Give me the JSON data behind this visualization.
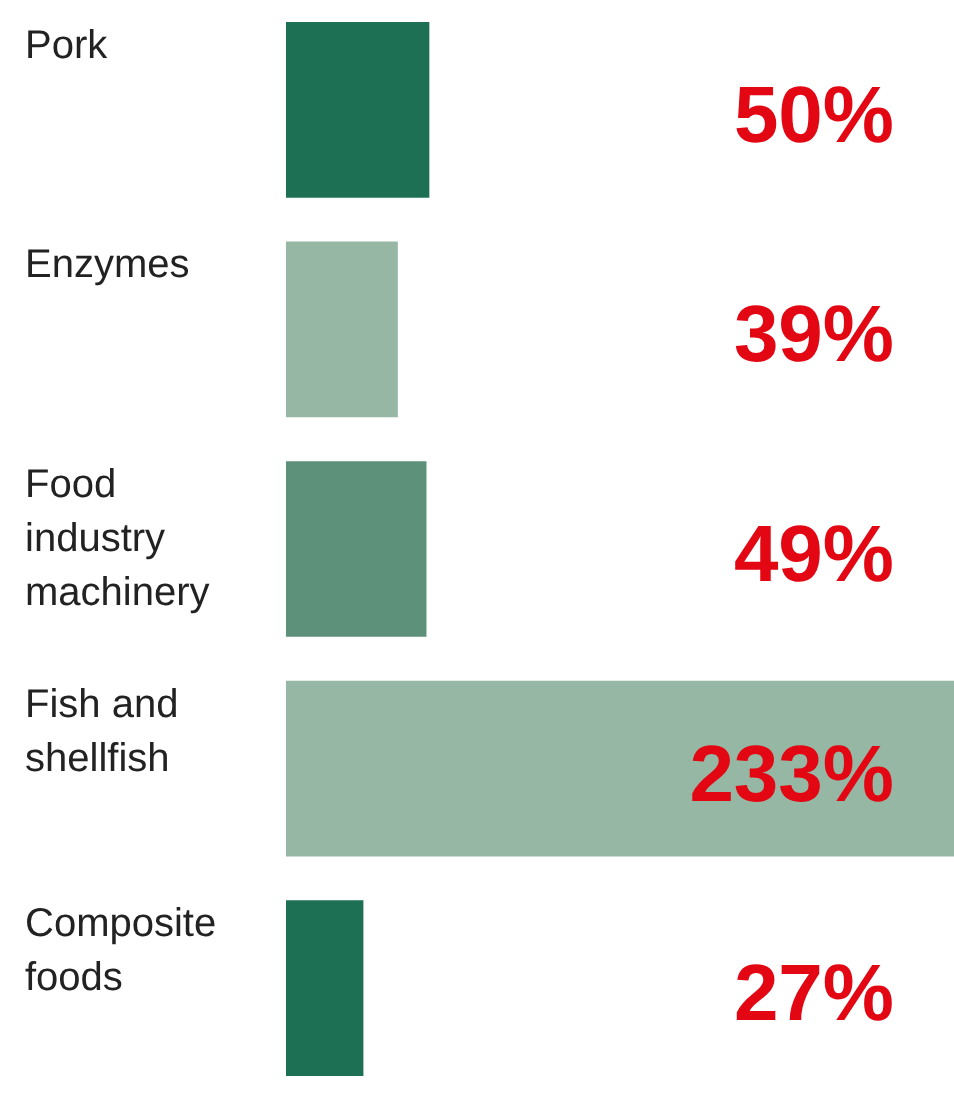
{
  "chart_data": {
    "type": "bar",
    "orientation": "horizontal",
    "categories": [
      "Pork",
      "Enzymes",
      "Food industry machinery",
      "Fish and shellfish",
      "Composite foods"
    ],
    "values": [
      50,
      39,
      49,
      233,
      27
    ],
    "value_labels": [
      "50%",
      "39%",
      "49%",
      "233%",
      "27%"
    ],
    "colors": [
      "#1e7055",
      "#95b7a3",
      "#5e917a",
      "#95b7a3",
      "#1e7055"
    ]
  }
}
